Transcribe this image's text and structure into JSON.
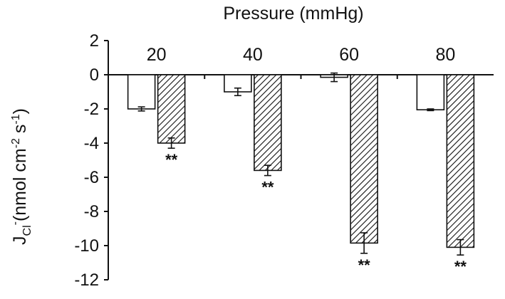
{
  "chart_data": {
    "type": "bar",
    "title": "Pressure (mmHg)",
    "ylabel": {
      "base": "J",
      "subscript": "Cl",
      "superscript": "-",
      "unit_open": "(nmol cm",
      "unit_exp1": "-2",
      "unit_mid": " s",
      "unit_exp2": "-1",
      "unit_close": ")"
    },
    "categories": [
      "20",
      "40",
      "60",
      "80"
    ],
    "series": [
      {
        "style": "open",
        "values": [
          -2.0,
          -1.0,
          -0.15,
          -2.05
        ],
        "errors": [
          0.12,
          0.22,
          0.25,
          0.05
        ]
      },
      {
        "style": "hatched",
        "values": [
          -4.0,
          -5.6,
          -9.85,
          -10.1
        ],
        "errors": [
          0.3,
          0.3,
          0.6,
          0.45
        ]
      }
    ],
    "annotations": [
      "**",
      "**",
      "**",
      "**"
    ],
    "ylim": [
      -12,
      2
    ],
    "yticks": [
      "2",
      "0",
      "-2",
      "-4",
      "-6",
      "-8",
      "-10",
      "-12"
    ],
    "colors": {
      "stroke": "#111111",
      "open_fill": "#ffffff",
      "hatch": "#111111"
    },
    "grid": false,
    "legend": "none"
  }
}
